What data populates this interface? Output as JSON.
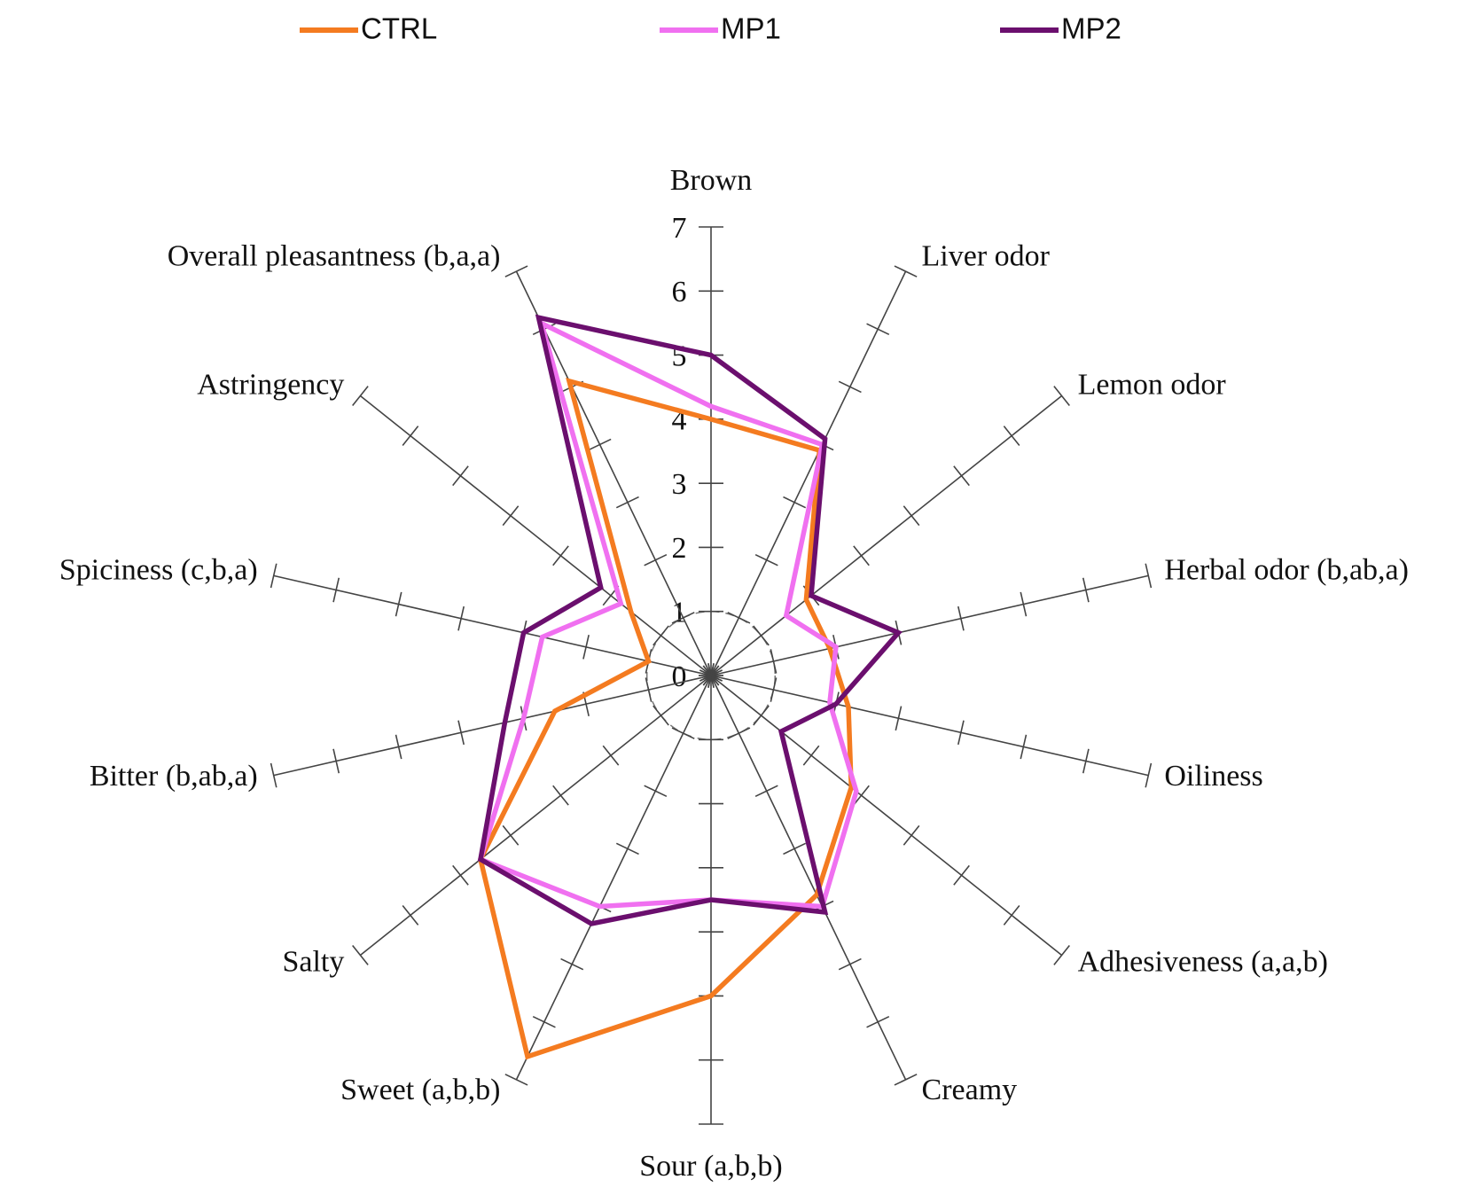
{
  "chart_data": {
    "type": "radar",
    "categories": [
      "Brown",
      "Liver odor",
      "Lemon odor",
      "Herbal odor (b,ab,a)",
      "Oiliness",
      "Adhesiveness (a,a,b)",
      "Creamy",
      "Sour (a,b,b)",
      "Sweet (a,b,b)",
      "Salty",
      "Bitter (b,ab,a)",
      "Spiciness (c,b,a)",
      "Astringency",
      "Overall pleasantness (b,a,a)"
    ],
    "series": [
      {
        "name": "CTRL",
        "color": "#f47b20",
        "values": [
          4.0,
          3.9,
          1.9,
          1.9,
          2.2,
          2.8,
          3.8,
          5.0,
          6.6,
          4.6,
          2.5,
          1.0,
          1.6,
          5.1
        ]
      },
      {
        "name": "MP1",
        "color": "#f070f0",
        "values": [
          4.2,
          4.0,
          1.5,
          2.0,
          1.9,
          2.9,
          4.0,
          3.5,
          4.0,
          4.6,
          3.0,
          2.7,
          1.8,
          6.1
        ]
      },
      {
        "name": "MP2",
        "color": "#6b0f6e",
        "values": [
          5.0,
          4.1,
          2.0,
          3.0,
          2.0,
          1.4,
          4.1,
          3.5,
          4.3,
          4.6,
          3.3,
          3.0,
          2.2,
          6.2
        ]
      }
    ],
    "rlim": [
      0,
      7
    ],
    "rticks": [
      0,
      1,
      2,
      3,
      4,
      5,
      6,
      7
    ],
    "legend": "top"
  }
}
